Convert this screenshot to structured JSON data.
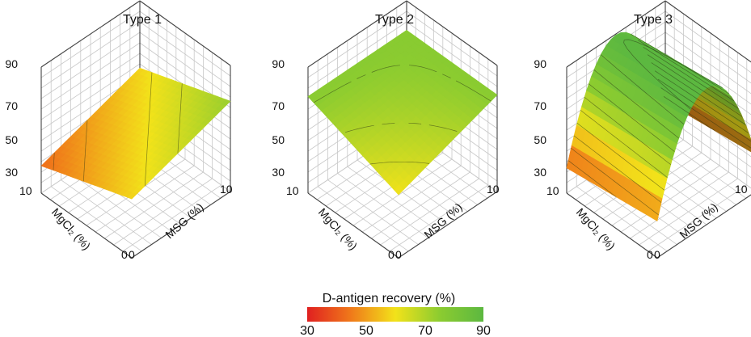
{
  "colorbar": {
    "title": "D-antigen recovery (%)",
    "ticks": [
      "30",
      "50",
      "70",
      "90"
    ],
    "min": 30,
    "max": 90,
    "colors": [
      "#e02020",
      "#f07a1a",
      "#f2e21a",
      "#8ccc30",
      "#5cb840"
    ]
  },
  "chart_data": [
    {
      "type": "surface",
      "title": "Type 1",
      "xlabel": "MgCl₂ (%)",
      "ylabel": "MSG (%)",
      "zlabel": "D-antigen recovery (%)",
      "x_range": [
        0,
        10
      ],
      "y_range": [
        0,
        10
      ],
      "zlim": [
        30,
        90
      ],
      "z_ticks": [
        "30",
        "50",
        "70",
        "90"
      ],
      "x_ticks": [
        "10",
        "0"
      ],
      "y_ticks": [
        "0",
        "10"
      ],
      "grid": true,
      "surface": {
        "model": "plane",
        "c": 58,
        "a": -1.5,
        "b": 1.5
      }
    },
    {
      "type": "surface",
      "title": "Type 2",
      "xlabel": "MgCl₂ (%)",
      "ylabel": "MSG (%)",
      "zlabel": "D-antigen recovery (%)",
      "x_range": [
        0,
        10
      ],
      "y_range": [
        0,
        10
      ],
      "zlim": [
        30,
        90
      ],
      "z_ticks": [
        "30",
        "50",
        "70",
        "90"
      ],
      "x_ticks": [
        "10",
        "0"
      ],
      "y_ticks": [
        "0",
        "10"
      ],
      "grid": true,
      "surface": {
        "model": "saddle",
        "c": 72,
        "a": 0.8,
        "b": 0.8,
        "ab": -0.16
      }
    },
    {
      "type": "surface",
      "title": "Type 3",
      "xlabel": "MgCl₂ (%)",
      "ylabel": "MSG (%)",
      "zlabel": "D-antigen recovery (%)",
      "x_range": [
        0,
        10
      ],
      "y_range": [
        0,
        10
      ],
      "zlim": [
        30,
        90
      ],
      "z_ticks": [
        "30",
        "50",
        "70",
        "90"
      ],
      "x_ticks": [
        "10",
        "0"
      ],
      "y_ticks": [
        "0",
        "10"
      ],
      "grid": true,
      "surface": {
        "model": "ridge",
        "c": 95,
        "peak_y": 5,
        "curv": 1.9,
        "slope_x": 5.5
      }
    }
  ]
}
